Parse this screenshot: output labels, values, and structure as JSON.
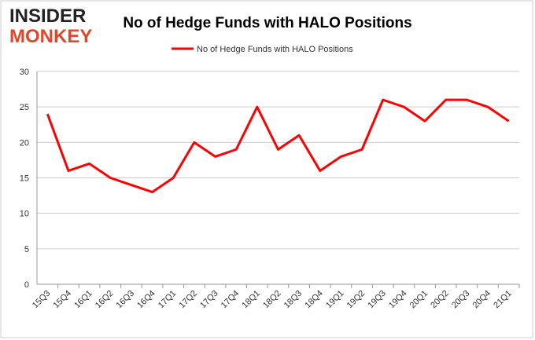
{
  "logo": {
    "line1": "INSIDER",
    "line2": "MONKEY"
  },
  "chart_data": {
    "type": "line",
    "title": "No of Hedge Funds with HALO Positions",
    "categories": [
      "15Q3",
      "15Q4",
      "16Q1",
      "16Q2",
      "16Q3",
      "16Q4",
      "17Q1",
      "17Q2",
      "17Q3",
      "17Q4",
      "18Q1",
      "18Q2",
      "18Q3",
      "18Q4",
      "19Q1",
      "19Q2",
      "19Q3",
      "19Q4",
      "20Q1",
      "20Q2",
      "20Q3",
      "20Q4",
      "21Q1"
    ],
    "series": [
      {
        "name": "No of Hedge Funds with HALO Positions",
        "color": "#ff0000",
        "values": [
          24,
          16,
          17,
          15,
          14,
          13,
          15,
          20,
          18,
          19,
          25,
          19,
          21,
          16,
          18,
          19,
          26,
          25,
          23,
          26,
          26,
          25,
          23
        ]
      }
    ],
    "ylim": [
      0,
      30
    ],
    "yticks": [
      0,
      5,
      10,
      15,
      20,
      25,
      30
    ],
    "grid": true,
    "legend": "top"
  }
}
